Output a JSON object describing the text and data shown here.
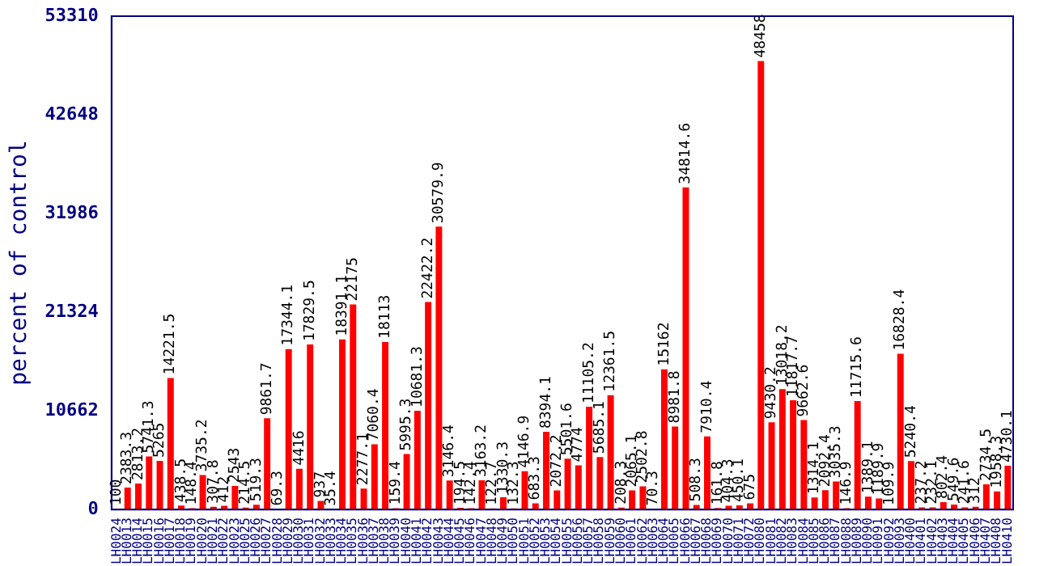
{
  "chart_data": {
    "type": "bar",
    "ylabel": "percent of control",
    "categories": [
      "LH0024",
      "LH0013",
      "LH0014",
      "LH0015",
      "LH0016",
      "LH0017",
      "LH0018",
      "LH0019",
      "LH0020",
      "LH0021",
      "LH0022",
      "LH0023",
      "LH0025",
      "LH0026",
      "LH0027",
      "LH0028",
      "LH0029",
      "LH0030",
      "LH0031",
      "LH0032",
      "LH0033",
      "LH0034",
      "LH0035",
      "LH0036",
      "LH0037",
      "LH0038",
      "LH0039",
      "LH0040",
      "LH0041",
      "LH0042",
      "LH0043",
      "LH0044",
      "LH0045",
      "LH0046",
      "LH0047",
      "LH0048",
      "LH0049",
      "LH0050",
      "LH0051",
      "LH0052",
      "LH0053",
      "LH0054",
      "LH0055",
      "LH0056",
      "LH0057",
      "LH0058",
      "LH0059",
      "LH0060",
      "LH0061",
      "LH0062",
      "LH0063",
      "LH0064",
      "LH0065",
      "LH0066",
      "LH0067",
      "LH0068",
      "LH0069",
      "LH0070",
      "LH0071",
      "LH0072",
      "LH0080",
      "LH0081",
      "LH0082",
      "LH0083",
      "LH0084",
      "LH0085",
      "LH0086",
      "LH0087",
      "LH0088",
      "LH0089",
      "LH0090",
      "LH0091",
      "LH0092",
      "LH0093",
      "LH0400",
      "LH0401",
      "LH0402",
      "LH0403",
      "LH0404",
      "LH0405",
      "LH0406",
      "LH0407",
      "LH0408",
      "LH0410"
    ],
    "values": [
      100,
      2383.3,
      2813.2,
      5741.3,
      5265,
      14221.5,
      438.5,
      148.4,
      3735.2,
      307.8,
      412,
      2543,
      214.5,
      519.3,
      9861.7,
      69.3,
      17344.1,
      4416,
      17829.5,
      937,
      35.4,
      18391.1,
      22175,
      2277.1,
      7060.4,
      18113,
      159.4,
      5995.3,
      10681.3,
      22422.2,
      30579.9,
      3146.4,
      194.5,
      142.4,
      3163.2,
      122.7,
      1330.3,
      132.3,
      4146.9,
      683.3,
      8394.1,
      2072.2,
      5501.6,
      4774,
      11105.2,
      5685.1,
      12361.5,
      208.3,
      2065.1,
      2502.8,
      70.3,
      15162,
      8981.8,
      34814.6,
      508.3,
      7910.4,
      161.8,
      404.3,
      450.1,
      675,
      48458,
      9430.2,
      13018.2,
      11817.7,
      9662.6,
      1314.1,
      2092.4,
      3035.3,
      146.9,
      11715.6,
      1389.1,
      1189.9,
      109.9,
      16828.4,
      5240.4,
      237.2,
      232.1,
      802.4,
      549.6,
      241.6,
      312,
      2734.5,
      1958.3,
      4730.1
    ],
    "color": "#ff0000",
    "data_labels": true,
    "ylim": [
      0,
      53310
    ],
    "yticks": [
      0,
      10662,
      21324,
      31986,
      42648,
      53310
    ],
    "grid": false,
    "legend": false
  }
}
